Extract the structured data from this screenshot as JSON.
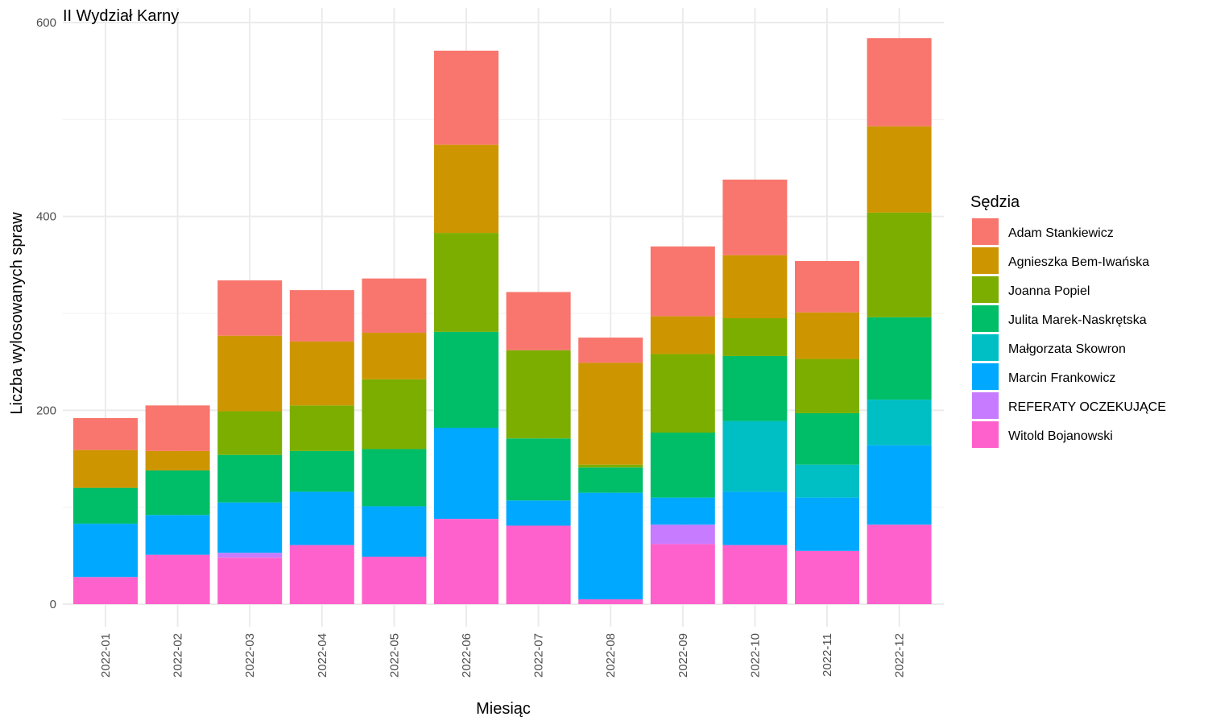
{
  "chart_data": {
    "type": "bar",
    "stacked": true,
    "title": "II Wydział Karny",
    "xlabel": "Miesiąc",
    "ylabel": "Liczba wylosowanych spraw",
    "ylim": [
      0,
      600
    ],
    "yticks": [
      0,
      200,
      400,
      600
    ],
    "grid": true,
    "legend_position": "right",
    "legend_title": "Sędzia",
    "categories": [
      "2022-01",
      "2022-02",
      "2022-03",
      "2022-04",
      "2022-05",
      "2022-06",
      "2022-07",
      "2022-08",
      "2022-09",
      "2022-10",
      "2022-11",
      "2022-12"
    ],
    "series": [
      {
        "name": "Witold Bojanowski",
        "color": "#FF61CC",
        "values": [
          28,
          51,
          48,
          61,
          49,
          88,
          81,
          5,
          62,
          61,
          55,
          82
        ]
      },
      {
        "name": "REFERATY OCZEKUJĄCE",
        "color": "#C77CFF",
        "values": [
          0,
          0,
          5,
          0,
          0,
          0,
          0,
          0,
          20,
          0,
          0,
          0
        ]
      },
      {
        "name": "Marcin Frankowicz",
        "color": "#00A9FF",
        "values": [
          55,
          41,
          52,
          55,
          52,
          94,
          26,
          110,
          28,
          55,
          55,
          82
        ]
      },
      {
        "name": "Małgorzata Skowron",
        "color": "#00BFC4",
        "values": [
          0,
          0,
          0,
          0,
          0,
          0,
          0,
          0,
          0,
          73,
          34,
          47
        ]
      },
      {
        "name": "Julita Marek-Naskrętska",
        "color": "#00BE67",
        "values": [
          37,
          46,
          49,
          42,
          59,
          99,
          64,
          26,
          67,
          67,
          53,
          85
        ]
      },
      {
        "name": "Joanna Popiel",
        "color": "#7CAE00",
        "values": [
          0,
          0,
          45,
          47,
          72,
          102,
          91,
          3,
          81,
          39,
          56,
          108
        ]
      },
      {
        "name": "Agnieszka Bem-Iwańska",
        "color": "#CD9600",
        "values": [
          39,
          20,
          78,
          66,
          48,
          91,
          0,
          105,
          39,
          65,
          48,
          89
        ]
      },
      {
        "name": "Adam Stankiewicz",
        "color": "#F8766D",
        "values": [
          33,
          47,
          57,
          53,
          56,
          97,
          60,
          26,
          72,
          78,
          53,
          91
        ]
      }
    ],
    "legend_order": [
      "Adam Stankiewicz",
      "Agnieszka Bem-Iwańska",
      "Joanna Popiel",
      "Julita Marek-Naskrętska",
      "Małgorzata Skowron",
      "Marcin Frankowicz",
      "REFERATY OCZEKUJĄCE",
      "Witold Bojanowski"
    ]
  }
}
